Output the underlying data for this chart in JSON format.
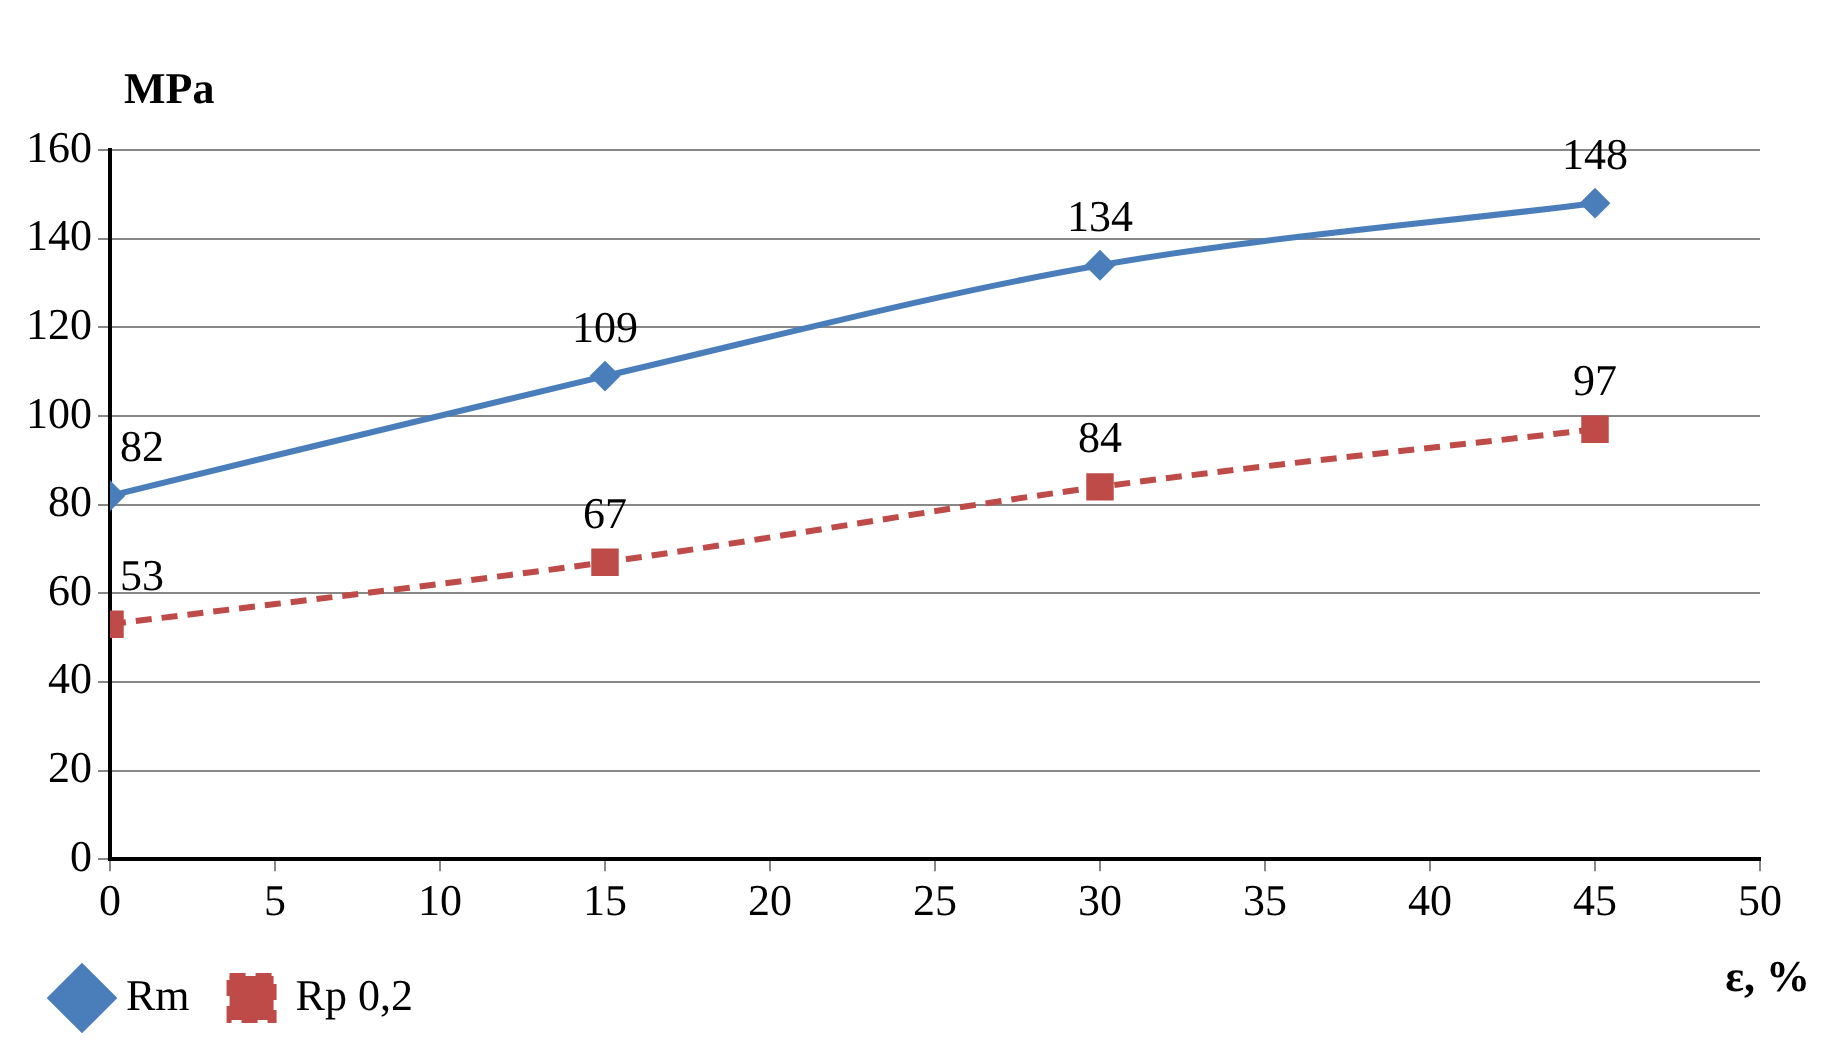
{
  "chart_data": {
    "type": "line",
    "ylabel": "MPa",
    "xlabel": "ε, %",
    "x": [
      0,
      15,
      30,
      45
    ],
    "series": [
      {
        "name": "Rm",
        "color": "#4a7ebb",
        "values": [
          82,
          109,
          134,
          148
        ],
        "marker": "diamond",
        "line_style": "solid"
      },
      {
        "name": "Rp 0,2",
        "color": "#be4b48",
        "values": [
          53,
          67,
          84,
          97
        ],
        "marker": "square",
        "line_style": "dashed"
      }
    ],
    "xlim": [
      0,
      50
    ],
    "xticks": [
      0,
      5,
      10,
      15,
      20,
      25,
      30,
      35,
      40,
      45,
      50
    ],
    "ylim": [
      0,
      160
    ],
    "yticks": [
      0,
      20,
      40,
      60,
      80,
      100,
      120,
      140,
      160
    ],
    "grid": "y",
    "legend": "bottom",
    "data_labels": true
  }
}
